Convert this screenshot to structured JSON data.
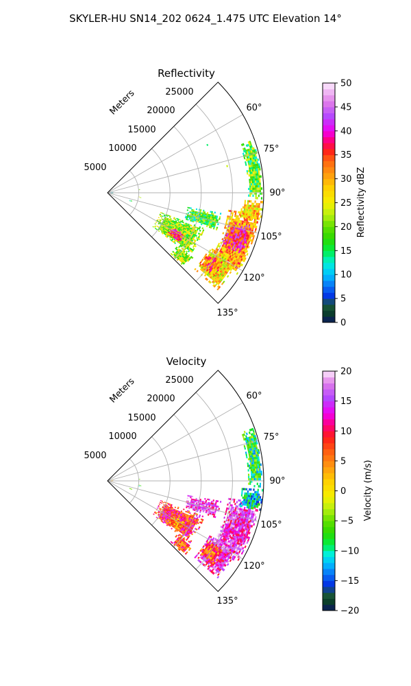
{
  "figure": {
    "title": "SKYLER-HU  SN14_202  0624_1.475 UTC Elevation 14°"
  },
  "colors": {
    "grid": "#b0b0b0",
    "frame": "#000000"
  },
  "chart_data": [
    {
      "type": "heatmap",
      "projection": "polar-sector",
      "title": "Reflectivity",
      "radial_label": "Meters",
      "radial_ticks": [
        "5000",
        "10000",
        "15000",
        "20000",
        "25000"
      ],
      "radial_tick_values": [
        5000,
        10000,
        15000,
        20000,
        25000
      ],
      "radial_max": 25000,
      "angle_range_deg": [
        45,
        135
      ],
      "angle_ticks": [
        "60°",
        "75°",
        "90°",
        "105°",
        "120°",
        "135°"
      ],
      "angle_tick_values": [
        60,
        75,
        90,
        105,
        120,
        135
      ],
      "grid": true,
      "colorbar": {
        "label": "Reflectivity dBZ",
        "range": [
          0,
          50
        ],
        "ticks": [
          "0",
          "5",
          "10",
          "15",
          "20",
          "25",
          "30",
          "35",
          "40",
          "45",
          "50"
        ],
        "tick_values": [
          0,
          5,
          10,
          15,
          20,
          25,
          30,
          35,
          40,
          45,
          50
        ],
        "stops": [
          {
            "value": 0,
            "color": "#0b1760"
          },
          {
            "value": 2,
            "color": "#0b3f2a"
          },
          {
            "value": 4,
            "color": "#1f5f3c"
          },
          {
            "value": 5,
            "color": "#0026e0"
          },
          {
            "value": 7.5,
            "color": "#0a6ef5"
          },
          {
            "value": 10,
            "color": "#00c3ff"
          },
          {
            "value": 12.5,
            "color": "#00f0d8"
          },
          {
            "value": 15,
            "color": "#00ee44"
          },
          {
            "value": 17.5,
            "color": "#2bd800"
          },
          {
            "value": 20,
            "color": "#62e000"
          },
          {
            "value": 22.5,
            "color": "#b8f010"
          },
          {
            "value": 25,
            "color": "#f5f000"
          },
          {
            "value": 28,
            "color": "#ffd200"
          },
          {
            "value": 31,
            "color": "#ff9a10"
          },
          {
            "value": 34,
            "color": "#ff6010"
          },
          {
            "value": 36,
            "color": "#ff1a1a"
          },
          {
            "value": 38,
            "color": "#ff0080"
          },
          {
            "value": 40,
            "color": "#f000f0"
          },
          {
            "value": 43,
            "color": "#b448ff"
          },
          {
            "value": 46,
            "color": "#e07ce8"
          },
          {
            "value": 50,
            "color": "#fdeafd"
          }
        ]
      },
      "echo_regions": [
        {
          "az": [
            98,
            122
          ],
          "range": [
            19500,
            24500
          ],
          "value": 30
        },
        {
          "az": [
            103,
            114
          ],
          "range": [
            20000,
            23500
          ],
          "value": 38
        },
        {
          "az": [
            93,
            101
          ],
          "range": [
            21500,
            24800
          ],
          "value": 28
        },
        {
          "az": [
            70,
            92
          ],
          "range": [
            22500,
            24800
          ],
          "value": 19
        },
        {
          "az": [
            118,
            131
          ],
          "range": [
            18500,
            23500
          ],
          "value": 27
        },
        {
          "az": [
            121,
            128
          ],
          "range": [
            18500,
            21500
          ],
          "value": 33
        },
        {
          "az": [
            110,
            127
          ],
          "range": [
            9000,
            16500
          ],
          "value": 21
        },
        {
          "az": [
            118,
            125
          ],
          "range": [
            11500,
            14000
          ],
          "value": 36
        },
        {
          "az": [
            100,
            109
          ],
          "range": [
            13000,
            18500
          ],
          "value": 18
        },
        {
          "az": [
            127,
            134
          ],
          "range": [
            14000,
            17000
          ],
          "value": 22
        },
        {
          "az": [
            64,
            64
          ],
          "range": [
            17600,
            17600
          ],
          "value": 18
        },
        {
          "az": [
            77,
            77
          ],
          "range": [
            19500,
            19500
          ],
          "value": 18
        },
        {
          "az": [
            84,
            87
          ],
          "range": [
            5000,
            5200
          ],
          "value": 18
        },
        {
          "az": [
            97,
            99
          ],
          "range": [
            5000,
            5400
          ],
          "value": 18
        },
        {
          "az": [
            108,
            110
          ],
          "range": [
            3700,
            4000
          ],
          "value": 18
        },
        {
          "az": [
            80,
            100
          ],
          "range": [
            0,
            700
          ],
          "value": 10
        }
      ]
    },
    {
      "type": "heatmap",
      "projection": "polar-sector",
      "title": "Velocity",
      "radial_label": "Meters",
      "radial_ticks": [
        "5000",
        "10000",
        "15000",
        "20000",
        "25000"
      ],
      "radial_tick_values": [
        5000,
        10000,
        15000,
        20000,
        25000
      ],
      "radial_max": 25000,
      "angle_range_deg": [
        45,
        135
      ],
      "angle_ticks": [
        "60°",
        "75°",
        "90°",
        "105°",
        "120°",
        "135°"
      ],
      "angle_tick_values": [
        60,
        75,
        90,
        105,
        120,
        135
      ],
      "grid": true,
      "colorbar": {
        "label": "Velocity (m/s)",
        "range": [
          -20,
          20
        ],
        "ticks": [
          "−20",
          "−15",
          "−10",
          "−5",
          "0",
          "5",
          "10",
          "15",
          "20"
        ],
        "tick_values": [
          -20,
          -15,
          -10,
          -5,
          0,
          5,
          10,
          15,
          20
        ],
        "stops": [
          {
            "value": -20,
            "color": "#0b1760"
          },
          {
            "value": -18.5,
            "color": "#0b3f2a"
          },
          {
            "value": -17,
            "color": "#1f5f3c"
          },
          {
            "value": -16,
            "color": "#0026e0"
          },
          {
            "value": -14,
            "color": "#0a6ef5"
          },
          {
            "value": -12,
            "color": "#00c3ff"
          },
          {
            "value": -10.5,
            "color": "#00f0d8"
          },
          {
            "value": -9,
            "color": "#00ee44"
          },
          {
            "value": -7,
            "color": "#2bd800"
          },
          {
            "value": -5,
            "color": "#62e000"
          },
          {
            "value": -3,
            "color": "#b8f010"
          },
          {
            "value": -1,
            "color": "#f5f000"
          },
          {
            "value": 1.5,
            "color": "#ffd200"
          },
          {
            "value": 4,
            "color": "#ff9a10"
          },
          {
            "value": 6.5,
            "color": "#ff6010"
          },
          {
            "value": 9,
            "color": "#ff1a1a"
          },
          {
            "value": 11,
            "color": "#ff0080"
          },
          {
            "value": 13,
            "color": "#f000f0"
          },
          {
            "value": 15.5,
            "color": "#b448ff"
          },
          {
            "value": 18,
            "color": "#e07ce8"
          },
          {
            "value": 20,
            "color": "#fdeafd"
          }
        ]
      },
      "echo_regions": [
        {
          "az": [
            98,
            122
          ],
          "range": [
            19500,
            24500
          ],
          "value": 15
        },
        {
          "az": [
            103,
            114
          ],
          "range": [
            20000,
            23500
          ],
          "value": 14
        },
        {
          "az": [
            93,
            101
          ],
          "range": [
            21500,
            24800
          ],
          "value": -11
        },
        {
          "az": [
            70,
            92
          ],
          "range": [
            22500,
            24800
          ],
          "value": -8
        },
        {
          "az": [
            118,
            131
          ],
          "range": [
            18500,
            23500
          ],
          "value": 14
        },
        {
          "az": [
            121,
            128
          ],
          "range": [
            18500,
            21500
          ],
          "value": 7
        },
        {
          "az": [
            110,
            127
          ],
          "range": [
            9000,
            16500
          ],
          "value": 9
        },
        {
          "az": [
            118,
            125
          ],
          "range": [
            11500,
            14000
          ],
          "value": 4
        },
        {
          "az": [
            100,
            109
          ],
          "range": [
            13000,
            18500
          ],
          "value": 15
        },
        {
          "az": [
            127,
            134
          ],
          "range": [
            14000,
            17000
          ],
          "value": 8
        },
        {
          "az": [
            64,
            64
          ],
          "range": [
            17600,
            17600
          ],
          "value": -6
        },
        {
          "az": [
            77,
            77
          ],
          "range": [
            19500,
            19500
          ],
          "value": -6
        },
        {
          "az": [
            84,
            87
          ],
          "range": [
            5000,
            5200
          ],
          "value": -6
        },
        {
          "az": [
            97,
            99
          ],
          "range": [
            5000,
            5400
          ],
          "value": -6
        },
        {
          "az": [
            108,
            110
          ],
          "range": [
            3700,
            4000
          ],
          "value": -6
        },
        {
          "az": [
            80,
            100
          ],
          "range": [
            0,
            700
          ],
          "value": 2
        }
      ]
    }
  ]
}
